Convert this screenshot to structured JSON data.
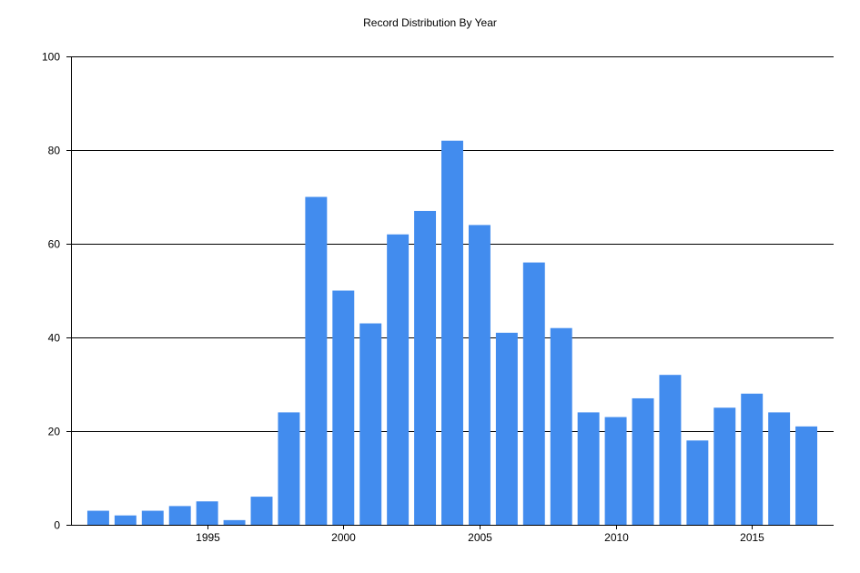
{
  "chart_data": {
    "type": "bar",
    "title": "Record Distribution By Year",
    "xlabel": "",
    "ylabel": "",
    "categories": [
      1991,
      1992,
      1993,
      1994,
      1995,
      1996,
      1997,
      1998,
      1999,
      2000,
      2001,
      2002,
      2003,
      2004,
      2005,
      2006,
      2007,
      2008,
      2009,
      2010,
      2011,
      2012,
      2013,
      2014,
      2015,
      2016,
      2017
    ],
    "values": [
      3,
      2,
      3,
      4,
      5,
      1,
      6,
      24,
      70,
      50,
      43,
      62,
      67,
      82,
      64,
      41,
      56,
      42,
      24,
      23,
      27,
      32,
      18,
      25,
      28,
      24,
      21
    ],
    "xlim": [
      1990,
      2018
    ],
    "ylim": [
      0,
      100
    ],
    "x_ticks": [
      1995,
      2000,
      2005,
      2010,
      2015
    ],
    "y_ticks": [
      0,
      20,
      40,
      60,
      80,
      100
    ],
    "grid": true,
    "legend": false,
    "bar_color": "#428cee"
  }
}
